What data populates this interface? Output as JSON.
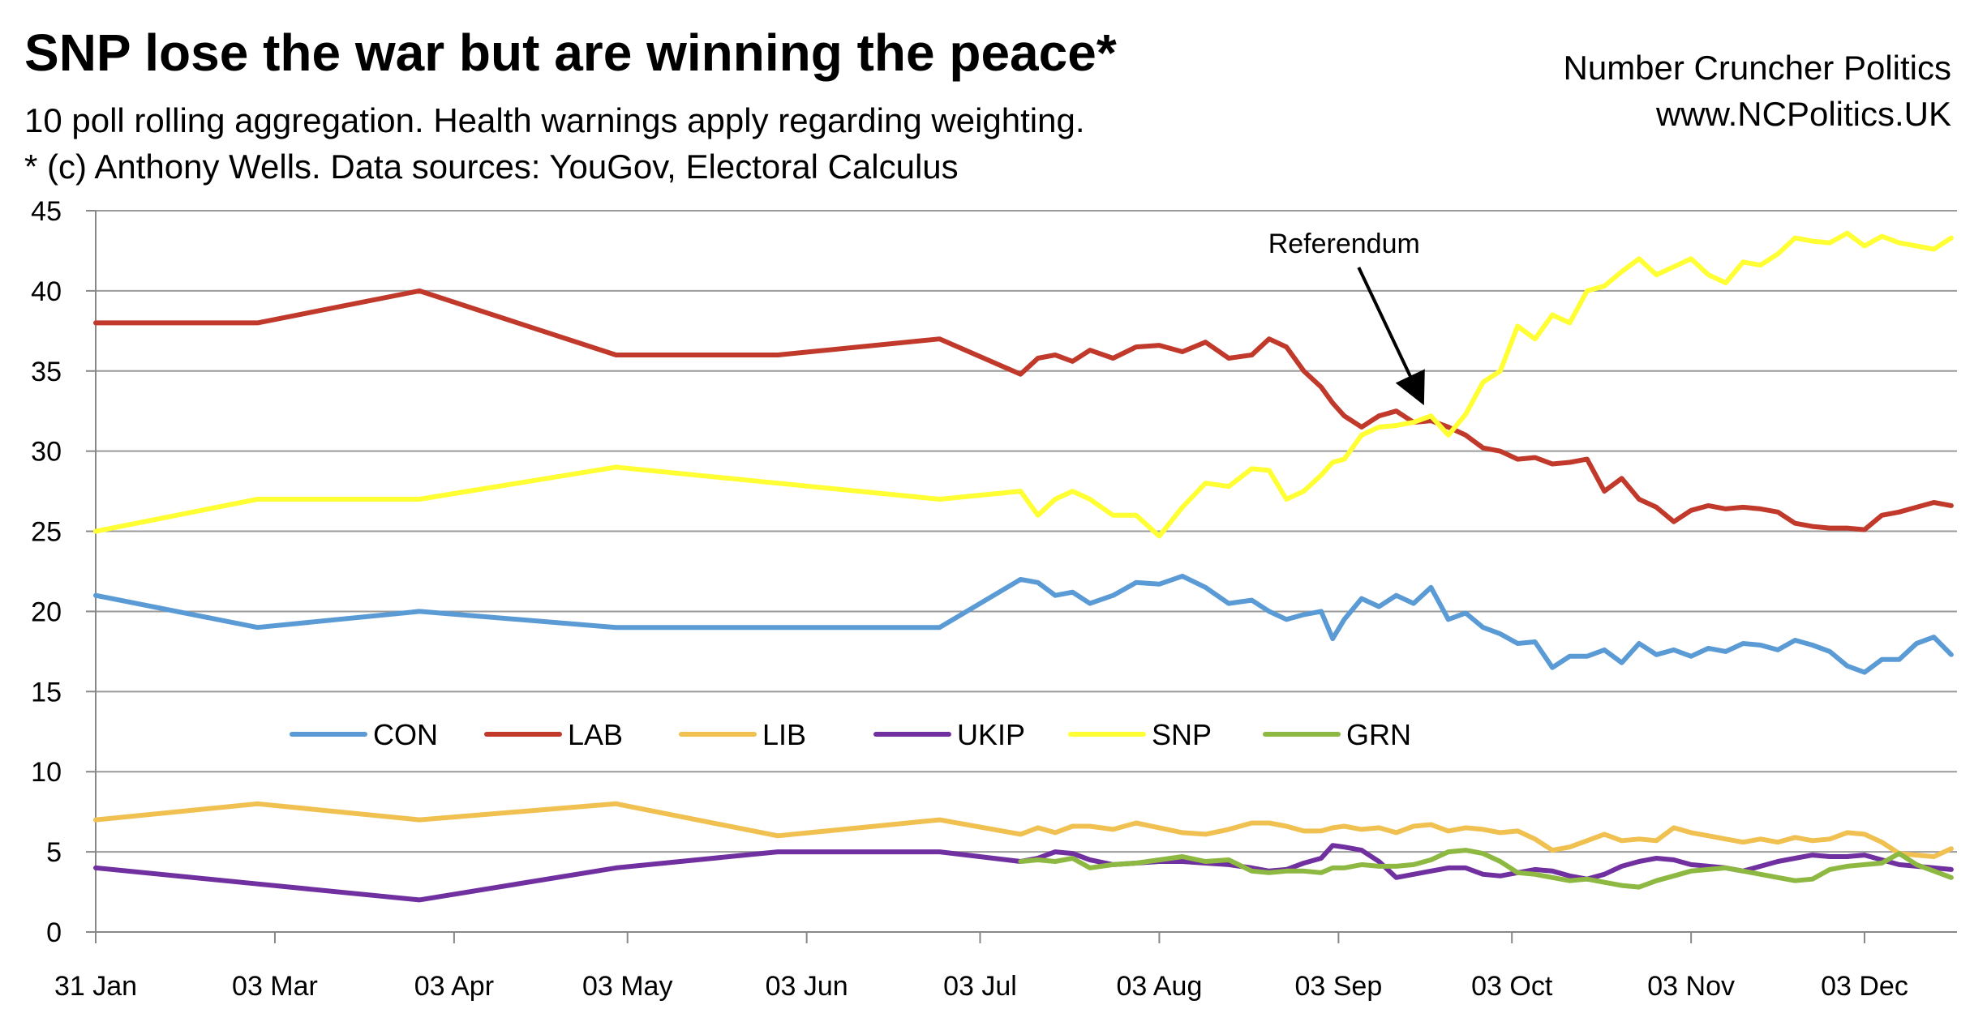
{
  "header": {
    "title": "SNP lose the war but are winning the peace*",
    "subtitle1": "10 poll rolling aggregation. Health warnings apply regarding weighting.",
    "subtitle2": "* (c) Anthony Wells. Data sources: YouGov, Electoral Calculus",
    "credit1": "Number Cruncher Politics",
    "credit2": "www.NCPolitics.UK"
  },
  "chart_data": {
    "type": "line",
    "title": "SNP lose the war but are winning the peace*",
    "xlabel": "",
    "ylabel": "",
    "ylim": [
      0,
      45
    ],
    "yticks": [
      0,
      5,
      10,
      15,
      20,
      25,
      30,
      35,
      40,
      45
    ],
    "xlim_days": [
      0,
      322
    ],
    "xticks": [
      {
        "label": "31 Jan",
        "day": 0
      },
      {
        "label": "03 Mar",
        "day": 31
      },
      {
        "label": "03 Apr",
        "day": 62
      },
      {
        "label": "03 May",
        "day": 92
      },
      {
        "label": "03 Jun",
        "day": 123
      },
      {
        "label": "03 Jul",
        "day": 153
      },
      {
        "label": "03 Aug",
        "day": 184
      },
      {
        "label": "03 Sep",
        "day": 215
      },
      {
        "label": "03 Oct",
        "day": 245
      },
      {
        "label": "03 Nov",
        "day": 276
      },
      {
        "label": "03 Dec",
        "day": 306
      }
    ],
    "grid": true,
    "legend_position": "center-left",
    "annotation": {
      "text": "Referendum",
      "day": 230,
      "value": 31.5
    },
    "series": [
      {
        "name": "CON",
        "color": "#5B9BD5",
        "x": [
          0,
          28,
          56,
          90,
          118,
          146,
          160,
          163,
          166,
          169,
          172,
          176,
          180,
          184,
          188,
          192,
          196,
          200,
          203,
          206,
          209,
          212,
          214,
          216,
          219,
          222,
          225,
          228,
          231,
          234,
          237,
          240,
          243,
          246,
          249,
          252,
          255,
          258,
          261,
          264,
          267,
          270,
          273,
          276,
          279,
          282,
          285,
          288,
          291,
          294,
          297,
          300,
          303,
          306,
          309,
          312,
          315,
          318,
          321
        ],
        "y": [
          21,
          19,
          20,
          19,
          19,
          19,
          22,
          21.8,
          21,
          21.2,
          20.5,
          21,
          21.8,
          21.7,
          22.2,
          21.5,
          20.5,
          20.7,
          20,
          19.5,
          19.8,
          20,
          18.3,
          19.5,
          20.8,
          20.3,
          21,
          20.5,
          21.5,
          19.5,
          19.9,
          19,
          18.6,
          18,
          18.1,
          16.5,
          17.2,
          17.2,
          17.6,
          16.8,
          18,
          17.3,
          17.6,
          17.2,
          17.7,
          17.5,
          18,
          17.9,
          17.6,
          18.2,
          17.9,
          17.5,
          16.6,
          16.2,
          17,
          17,
          18,
          18.4,
          17.3
        ]
      },
      {
        "name": "LAB",
        "color": "#C0392B",
        "x": [
          0,
          28,
          56,
          90,
          118,
          146,
          160,
          163,
          166,
          169,
          172,
          176,
          180,
          184,
          188,
          192,
          196,
          200,
          203,
          206,
          209,
          212,
          214,
          216,
          219,
          222,
          225,
          228,
          231,
          234,
          237,
          240,
          243,
          246,
          249,
          252,
          255,
          258,
          261,
          264,
          267,
          270,
          273,
          276,
          279,
          282,
          285,
          288,
          291,
          294,
          297,
          300,
          303,
          306,
          309,
          312,
          315,
          318,
          321
        ],
        "y": [
          38,
          38,
          40,
          36,
          36,
          37,
          34.8,
          35.8,
          36,
          35.6,
          36.3,
          35.8,
          36.5,
          36.6,
          36.2,
          36.8,
          35.8,
          36,
          37,
          36.5,
          35,
          34,
          33,
          32.2,
          31.5,
          32.2,
          32.5,
          31.8,
          31.9,
          31.5,
          31,
          30.2,
          30,
          29.5,
          29.6,
          29.2,
          29.3,
          29.5,
          27.5,
          28.3,
          27,
          26.5,
          25.6,
          26.3,
          26.6,
          26.4,
          26.5,
          26.4,
          26.2,
          25.5,
          25.3,
          25.2,
          25.2,
          25.1,
          26,
          26.2,
          26.5,
          26.8,
          26.6
        ]
      },
      {
        "name": "LIB",
        "color": "#F0C050",
        "x": [
          0,
          28,
          56,
          90,
          118,
          146,
          160,
          163,
          166,
          169,
          172,
          176,
          180,
          184,
          188,
          192,
          196,
          200,
          203,
          206,
          209,
          212,
          214,
          216,
          219,
          222,
          225,
          228,
          231,
          234,
          237,
          240,
          243,
          246,
          249,
          252,
          255,
          258,
          261,
          264,
          267,
          270,
          273,
          276,
          279,
          282,
          285,
          288,
          291,
          294,
          297,
          300,
          303,
          306,
          309,
          312,
          315,
          318,
          321
        ],
        "y": [
          7,
          8,
          7,
          8,
          6,
          7,
          6.1,
          6.5,
          6.2,
          6.6,
          6.6,
          6.4,
          6.8,
          6.5,
          6.2,
          6.1,
          6.4,
          6.8,
          6.8,
          6.6,
          6.3,
          6.3,
          6.5,
          6.6,
          6.4,
          6.5,
          6.2,
          6.6,
          6.7,
          6.3,
          6.5,
          6.4,
          6.2,
          6.3,
          5.8,
          5.1,
          5.3,
          5.7,
          6.1,
          5.7,
          5.8,
          5.7,
          6.5,
          6.2,
          6,
          5.8,
          5.6,
          5.8,
          5.6,
          5.9,
          5.7,
          5.8,
          6.2,
          6.1,
          5.6,
          4.9,
          4.8,
          4.7,
          5.2
        ]
      },
      {
        "name": "UKIP",
        "color": "#7030A0",
        "x": [
          0,
          28,
          56,
          90,
          118,
          146,
          160,
          163,
          166,
          169,
          172,
          176,
          180,
          184,
          188,
          192,
          196,
          200,
          203,
          206,
          209,
          212,
          214,
          216,
          219,
          222,
          225,
          228,
          231,
          234,
          237,
          240,
          243,
          246,
          249,
          252,
          255,
          258,
          261,
          264,
          267,
          270,
          273,
          276,
          279,
          282,
          285,
          288,
          291,
          294,
          297,
          300,
          303,
          306,
          309,
          312,
          315,
          318,
          321
        ],
        "y": [
          4,
          3,
          2,
          4,
          5,
          5,
          4.4,
          4.6,
          5,
          4.9,
          4.5,
          4.2,
          4.3,
          4.4,
          4.4,
          4.3,
          4.2,
          4,
          3.8,
          3.9,
          4.3,
          4.6,
          5.4,
          5.3,
          5.1,
          4.4,
          3.4,
          3.6,
          3.8,
          4,
          4,
          3.6,
          3.5,
          3.7,
          3.9,
          3.8,
          3.5,
          3.3,
          3.6,
          4.1,
          4.4,
          4.6,
          4.5,
          4.2,
          4.1,
          4,
          3.8,
          4.1,
          4.4,
          4.6,
          4.8,
          4.7,
          4.7,
          4.8,
          4.5,
          4.2,
          4.1,
          4,
          3.9
        ]
      },
      {
        "name": "SNP",
        "color": "#FFFF33",
        "x": [
          0,
          28,
          56,
          90,
          118,
          146,
          160,
          163,
          166,
          169,
          172,
          176,
          180,
          184,
          188,
          192,
          196,
          200,
          203,
          206,
          209,
          212,
          214,
          216,
          219,
          222,
          225,
          228,
          231,
          234,
          237,
          240,
          243,
          246,
          249,
          252,
          255,
          258,
          261,
          264,
          267,
          270,
          273,
          276,
          279,
          282,
          285,
          288,
          291,
          294,
          297,
          300,
          303,
          306,
          309,
          312,
          315,
          318,
          321
        ],
        "y": [
          25,
          27,
          27,
          29,
          28,
          27,
          27.5,
          26,
          27,
          27.5,
          27,
          26,
          26,
          24.7,
          26.5,
          28,
          27.8,
          28.9,
          28.8,
          27,
          27.5,
          28.5,
          29.3,
          29.5,
          31,
          31.5,
          31.6,
          31.8,
          32.2,
          31,
          32.3,
          34.3,
          35,
          37.8,
          37,
          38.5,
          38,
          40,
          40.3,
          41.2,
          42,
          41,
          41.5,
          42,
          41,
          40.5,
          41.8,
          41.6,
          42.3,
          43.3,
          43.1,
          43,
          43.6,
          42.8,
          43.4,
          43,
          42.8,
          42.6,
          43.3
        ]
      },
      {
        "name": "GRN",
        "color": "#8DB842",
        "x": [
          160,
          163,
          166,
          169,
          172,
          176,
          180,
          184,
          188,
          192,
          196,
          200,
          203,
          206,
          209,
          212,
          214,
          216,
          219,
          222,
          225,
          228,
          231,
          234,
          237,
          240,
          243,
          246,
          249,
          252,
          255,
          258,
          261,
          264,
          267,
          270,
          273,
          276,
          279,
          282,
          285,
          288,
          291,
          294,
          297,
          300,
          303,
          306,
          309,
          312,
          315,
          318,
          321
        ],
        "y": [
          4.4,
          4.5,
          4.4,
          4.6,
          4,
          4.2,
          4.3,
          4.5,
          4.7,
          4.4,
          4.5,
          3.8,
          3.7,
          3.8,
          3.8,
          3.7,
          4,
          4,
          4.2,
          4.1,
          4.1,
          4.2,
          4.5,
          5,
          5.1,
          4.9,
          4.4,
          3.7,
          3.6,
          3.4,
          3.2,
          3.3,
          3.1,
          2.9,
          2.8,
          3.2,
          3.5,
          3.8,
          3.9,
          4,
          3.8,
          3.6,
          3.4,
          3.2,
          3.3,
          3.9,
          4.1,
          4.2,
          4.3,
          4.9,
          4.2,
          3.8,
          3.4
        ]
      }
    ]
  }
}
